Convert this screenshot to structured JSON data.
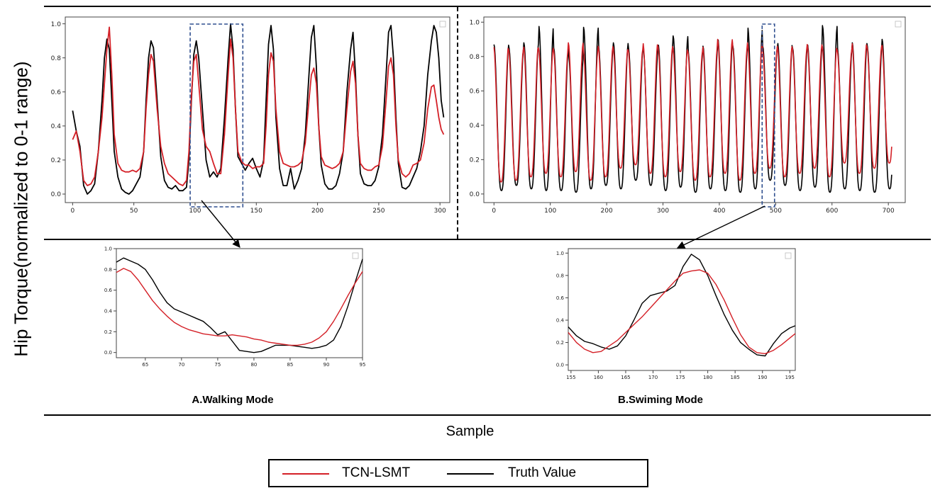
{
  "labels": {
    "y_axis": "Hip Torque(normalized to 0-1 range)",
    "x_axis": "Sample"
  },
  "colors": {
    "prediction": "#d42027",
    "truth": "#000000",
    "highlight": "#2f4f8f"
  },
  "legend": {
    "entries": [
      {
        "label": "TCN-LSMT",
        "color": "#d42027"
      },
      {
        "label": "Truth Value",
        "color": "#000000"
      }
    ]
  },
  "captions": {
    "walking": "A.Walking Mode",
    "swimming": "B.Swiming Mode"
  },
  "chart_data": [
    {
      "id": "walking_full",
      "type": "line",
      "title": "",
      "xlim": [
        -6,
        308
      ],
      "ylim": [
        -0.05,
        1.04
      ],
      "xticks": [
        0,
        50,
        100,
        150,
        200,
        250,
        300
      ],
      "yticks": [
        0.0,
        0.2,
        0.4,
        0.6,
        0.8,
        1.0
      ],
      "highlight_x": [
        96,
        139
      ],
      "series": [
        {
          "name": "Truth Value",
          "color": "#000000",
          "x": [
            0,
            3,
            6,
            9,
            12,
            15,
            18,
            21,
            24,
            26,
            28,
            30,
            32,
            34,
            37,
            40,
            43,
            46,
            49,
            52,
            55,
            58,
            60,
            62,
            64,
            66,
            69,
            72,
            75,
            78,
            81,
            84,
            87,
            90,
            93,
            95,
            97,
            99,
            101,
            103,
            106,
            109,
            112,
            115,
            118,
            121,
            124,
            127,
            129,
            131,
            133,
            135,
            138,
            141,
            144,
            147,
            150,
            153,
            156,
            158,
            160,
            162,
            164,
            166,
            169,
            172,
            175,
            178,
            181,
            184,
            187,
            190,
            193,
            195,
            197,
            199,
            201,
            203,
            206,
            209,
            212,
            215,
            218,
            221,
            224,
            227,
            229,
            231,
            233,
            235,
            238,
            241,
            244,
            247,
            250,
            253,
            256,
            258,
            260,
            262,
            264,
            266,
            269,
            272,
            275,
            278,
            281,
            284,
            287,
            290,
            293,
            295,
            297,
            299,
            301,
            303
          ],
          "y": [
            0.49,
            0.37,
            0.28,
            0.05,
            0.0,
            0.02,
            0.06,
            0.25,
            0.55,
            0.8,
            0.91,
            0.85,
            0.55,
            0.25,
            0.1,
            0.03,
            0.01,
            0.0,
            0.02,
            0.06,
            0.1,
            0.25,
            0.55,
            0.8,
            0.9,
            0.86,
            0.55,
            0.22,
            0.08,
            0.04,
            0.03,
            0.05,
            0.02,
            0.02,
            0.04,
            0.2,
            0.55,
            0.82,
            0.9,
            0.8,
            0.5,
            0.2,
            0.1,
            0.13,
            0.1,
            0.15,
            0.45,
            0.8,
            1.0,
            0.85,
            0.5,
            0.22,
            0.18,
            0.14,
            0.18,
            0.21,
            0.15,
            0.1,
            0.2,
            0.55,
            0.88,
            0.99,
            0.85,
            0.45,
            0.15,
            0.05,
            0.05,
            0.15,
            0.03,
            0.08,
            0.15,
            0.35,
            0.7,
            0.92,
            0.99,
            0.75,
            0.4,
            0.17,
            0.06,
            0.03,
            0.03,
            0.05,
            0.12,
            0.25,
            0.6,
            0.85,
            0.95,
            0.7,
            0.35,
            0.12,
            0.06,
            0.05,
            0.05,
            0.08,
            0.16,
            0.35,
            0.7,
            0.95,
            0.99,
            0.8,
            0.45,
            0.18,
            0.04,
            0.03,
            0.05,
            0.1,
            0.15,
            0.25,
            0.4,
            0.7,
            0.9,
            0.99,
            0.95,
            0.8,
            0.55,
            0.45
          ]
        },
        {
          "name": "TCN-LSMT",
          "color": "#d42027",
          "x": [
            0,
            3,
            6,
            9,
            12,
            15,
            18,
            21,
            24,
            26,
            28,
            30,
            32,
            34,
            37,
            40,
            43,
            46,
            49,
            52,
            55,
            58,
            60,
            62,
            64,
            66,
            69,
            72,
            75,
            78,
            81,
            84,
            87,
            90,
            93,
            95,
            97,
            99,
            101,
            103,
            106,
            109,
            112,
            115,
            118,
            121,
            124,
            127,
            129,
            131,
            133,
            135,
            138,
            141,
            144,
            147,
            150,
            153,
            156,
            158,
            160,
            162,
            164,
            166,
            169,
            172,
            175,
            178,
            181,
            184,
            187,
            190,
            193,
            195,
            197,
            199,
            201,
            203,
            206,
            209,
            212,
            215,
            218,
            221,
            224,
            227,
            229,
            231,
            233,
            235,
            238,
            241,
            244,
            247,
            250,
            253,
            256,
            258,
            260,
            262,
            264,
            266,
            269,
            272,
            275,
            278,
            281,
            284,
            287,
            290,
            293,
            295,
            297,
            299,
            301,
            303
          ],
          "y": [
            0.32,
            0.37,
            0.25,
            0.08,
            0.05,
            0.06,
            0.1,
            0.25,
            0.45,
            0.65,
            0.85,
            0.98,
            0.7,
            0.35,
            0.18,
            0.14,
            0.13,
            0.13,
            0.14,
            0.13,
            0.15,
            0.25,
            0.5,
            0.7,
            0.82,
            0.78,
            0.5,
            0.28,
            0.18,
            0.12,
            0.1,
            0.08,
            0.06,
            0.05,
            0.08,
            0.25,
            0.58,
            0.78,
            0.82,
            0.65,
            0.38,
            0.28,
            0.25,
            0.18,
            0.12,
            0.12,
            0.35,
            0.7,
            0.91,
            0.8,
            0.5,
            0.25,
            0.19,
            0.17,
            0.17,
            0.15,
            0.16,
            0.16,
            0.18,
            0.4,
            0.7,
            0.83,
            0.78,
            0.5,
            0.25,
            0.18,
            0.17,
            0.16,
            0.16,
            0.17,
            0.19,
            0.3,
            0.55,
            0.7,
            0.74,
            0.65,
            0.4,
            0.22,
            0.17,
            0.16,
            0.15,
            0.16,
            0.18,
            0.25,
            0.5,
            0.72,
            0.78,
            0.65,
            0.35,
            0.18,
            0.15,
            0.14,
            0.14,
            0.16,
            0.17,
            0.28,
            0.55,
            0.75,
            0.8,
            0.7,
            0.4,
            0.2,
            0.12,
            0.1,
            0.12,
            0.17,
            0.18,
            0.2,
            0.3,
            0.5,
            0.63,
            0.64,
            0.55,
            0.45,
            0.38,
            0.35
          ]
        }
      ]
    },
    {
      "id": "swimming_full",
      "type": "line",
      "title": "",
      "xlim": [
        -18,
        730
      ],
      "ylim": [
        -0.05,
        1.03
      ],
      "xticks": [
        0,
        100,
        200,
        300,
        400,
        500,
        600,
        700
      ],
      "yticks": [
        0.0,
        0.2,
        0.4,
        0.6,
        0.8,
        1.0
      ],
      "highlight_x": [
        476,
        498
      ],
      "period": 26.5,
      "series": [
        {
          "name": "Truth Value",
          "color": "#000000",
          "x0": 0,
          "x_end": 706,
          "phase": 0,
          "amp": [
            0.87,
            0.85,
            0.88,
            0.98,
            0.85,
            0.8,
            0.97,
            0.86,
            0.88,
            0.85,
            0.84,
            0.87,
            0.92,
            0.83,
            0.86,
            0.9,
            0.86,
            0.97,
            0.86,
            0.88,
            0.85,
            0.87,
            0.98,
            0.85,
            0.88,
            0.86,
            0.9,
            0.85
          ],
          "low": [
            0.02,
            0.05,
            0.03,
            0.02,
            0.02,
            0.01,
            0.03,
            0.05,
            0.03,
            0.08,
            0.05,
            0.02,
            0.04,
            0.01,
            0.03,
            0.02,
            0.01,
            0.03,
            0.08,
            0.05,
            0.02,
            0.04,
            0.01,
            0.03,
            0.02,
            0.01,
            0.03,
            0.02
          ]
        },
        {
          "name": "TCN-LSMT",
          "color": "#d42027",
          "x0": 0,
          "x_end": 706,
          "phase": -0.6,
          "amp": [
            0.86,
            0.84,
            0.86,
            0.85,
            0.84,
            0.88,
            0.84,
            0.86,
            0.85,
            0.84,
            0.88,
            0.86,
            0.85,
            0.83,
            0.86,
            0.9,
            0.86,
            0.88,
            0.84,
            0.86,
            0.85,
            0.87,
            0.86,
            0.84,
            0.88,
            0.86,
            0.87,
            0.85
          ],
          "low": [
            0.07,
            0.08,
            0.1,
            0.12,
            0.1,
            0.13,
            0.08,
            0.1,
            0.15,
            0.17,
            0.12,
            0.1,
            0.13,
            0.08,
            0.1,
            0.12,
            0.08,
            0.12,
            0.15,
            0.1,
            0.12,
            0.15,
            0.1,
            0.18,
            0.12,
            0.15,
            0.18,
            0.15
          ]
        }
      ]
    },
    {
      "id": "walking_zoom",
      "type": "line",
      "title": "",
      "xlim": [
        61,
        95
      ],
      "ylim": [
        -0.05,
        1.0
      ],
      "xticks": [
        65,
        70,
        75,
        80,
        85,
        90,
        95
      ],
      "yticks": [
        0.0,
        0.2,
        0.4,
        0.6,
        0.8,
        1.0
      ],
      "series": [
        {
          "name": "Truth Value",
          "color": "#000000",
          "x": [
            61,
            62,
            63,
            64,
            65,
            66,
            67,
            68,
            69,
            70,
            71,
            72,
            73,
            74,
            75,
            76,
            77,
            78,
            79,
            80,
            81,
            82,
            83,
            84,
            85,
            86,
            87,
            88,
            89,
            90,
            91,
            92,
            93,
            94,
            95
          ],
          "y": [
            0.87,
            0.91,
            0.88,
            0.85,
            0.8,
            0.7,
            0.58,
            0.48,
            0.42,
            0.39,
            0.36,
            0.33,
            0.3,
            0.24,
            0.17,
            0.2,
            0.11,
            0.02,
            0.01,
            0.0,
            0.01,
            0.04,
            0.07,
            0.07,
            0.07,
            0.06,
            0.05,
            0.04,
            0.05,
            0.07,
            0.12,
            0.25,
            0.45,
            0.68,
            0.9
          ]
        },
        {
          "name": "TCN-LSMT",
          "color": "#d42027",
          "x": [
            61,
            62,
            63,
            64,
            65,
            66,
            67,
            68,
            69,
            70,
            71,
            72,
            73,
            74,
            75,
            76,
            77,
            78,
            79,
            80,
            81,
            82,
            83,
            84,
            85,
            86,
            87,
            88,
            89,
            90,
            91,
            92,
            93,
            94,
            95
          ],
          "y": [
            0.77,
            0.81,
            0.78,
            0.7,
            0.6,
            0.5,
            0.42,
            0.35,
            0.29,
            0.25,
            0.22,
            0.2,
            0.18,
            0.17,
            0.16,
            0.16,
            0.17,
            0.16,
            0.15,
            0.13,
            0.12,
            0.1,
            0.09,
            0.08,
            0.07,
            0.07,
            0.08,
            0.1,
            0.14,
            0.2,
            0.3,
            0.42,
            0.55,
            0.67,
            0.78
          ]
        }
      ]
    },
    {
      "id": "swimming_zoom",
      "type": "line",
      "title": "",
      "xlim": [
        154.5,
        196
      ],
      "ylim": [
        -0.05,
        1.04
      ],
      "xticks": [
        155,
        160,
        165,
        170,
        175,
        180,
        185,
        190,
        195
      ],
      "yticks": [
        0.0,
        0.2,
        0.4,
        0.6,
        0.8,
        1.0
      ],
      "series": [
        {
          "name": "Truth Value",
          "color": "#000000",
          "x": [
            154.5,
            156,
            157.5,
            159,
            160.5,
            162,
            163.5,
            165,
            166.5,
            168,
            169.5,
            171,
            172.5,
            174,
            175.5,
            177,
            178.5,
            180,
            181.5,
            183,
            184.5,
            186,
            187.5,
            189,
            190.5,
            192,
            193.5,
            195,
            196
          ],
          "y": [
            0.34,
            0.26,
            0.21,
            0.19,
            0.16,
            0.14,
            0.17,
            0.26,
            0.4,
            0.55,
            0.62,
            0.64,
            0.66,
            0.71,
            0.88,
            0.99,
            0.94,
            0.8,
            0.62,
            0.45,
            0.31,
            0.2,
            0.14,
            0.09,
            0.08,
            0.19,
            0.28,
            0.33,
            0.35
          ]
        },
        {
          "name": "TCN-LSMT",
          "color": "#d42027",
          "x": [
            154.5,
            156,
            157.5,
            159,
            160.5,
            162,
            163.5,
            165,
            166.5,
            168,
            169.5,
            171,
            172.5,
            174,
            175.5,
            177,
            178.5,
            180,
            181.5,
            183,
            184.5,
            186,
            187.5,
            189,
            190.5,
            192,
            193.5,
            195,
            196
          ],
          "y": [
            0.29,
            0.2,
            0.14,
            0.11,
            0.12,
            0.17,
            0.22,
            0.29,
            0.36,
            0.43,
            0.51,
            0.59,
            0.67,
            0.75,
            0.82,
            0.84,
            0.85,
            0.82,
            0.72,
            0.58,
            0.42,
            0.27,
            0.16,
            0.11,
            0.1,
            0.13,
            0.18,
            0.24,
            0.28
          ]
        }
      ]
    }
  ]
}
